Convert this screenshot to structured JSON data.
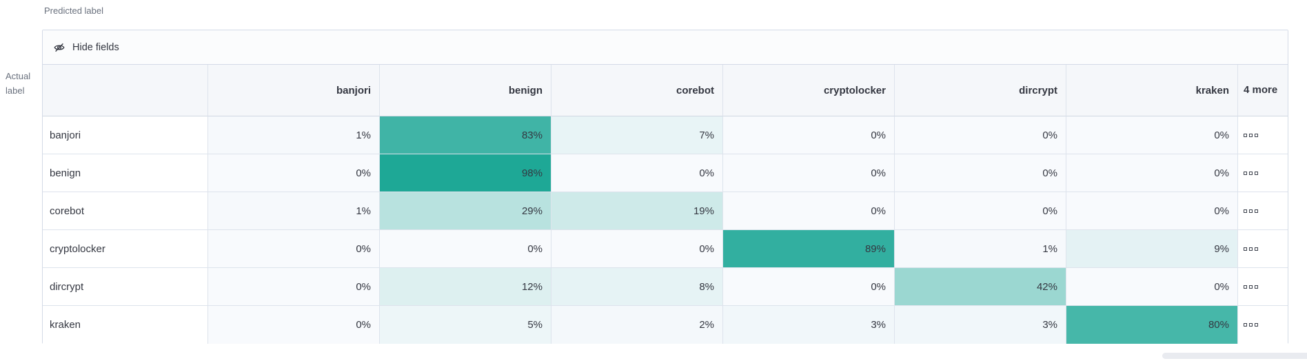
{
  "axes": {
    "predicted": "Predicted label",
    "actual": "Actual label"
  },
  "toolbar": {
    "hide_fields": "Hide fields"
  },
  "grid": {
    "columns": [
      "banjori",
      "benign",
      "corebot",
      "cryptolocker",
      "dircrypt",
      "kraken"
    ],
    "more_column_label": "4 more",
    "value_suffix": "%",
    "rows": [
      {
        "label": "banjori",
        "values": [
          1,
          83,
          7,
          0,
          0,
          0
        ]
      },
      {
        "label": "benign",
        "values": [
          0,
          98,
          0,
          0,
          0,
          0
        ]
      },
      {
        "label": "corebot",
        "values": [
          1,
          29,
          19,
          0,
          0,
          0
        ]
      },
      {
        "label": "cryptolocker",
        "values": [
          0,
          0,
          0,
          89,
          1,
          9
        ]
      },
      {
        "label": "dircrypt",
        "values": [
          0,
          12,
          8,
          0,
          42,
          0
        ]
      },
      {
        "label": "kraken",
        "values": [
          0,
          5,
          2,
          3,
          3,
          80
        ]
      }
    ]
  },
  "colors": {
    "heat_base": "#1AA694",
    "cell_zero_tint": "#F8FAFD"
  }
}
